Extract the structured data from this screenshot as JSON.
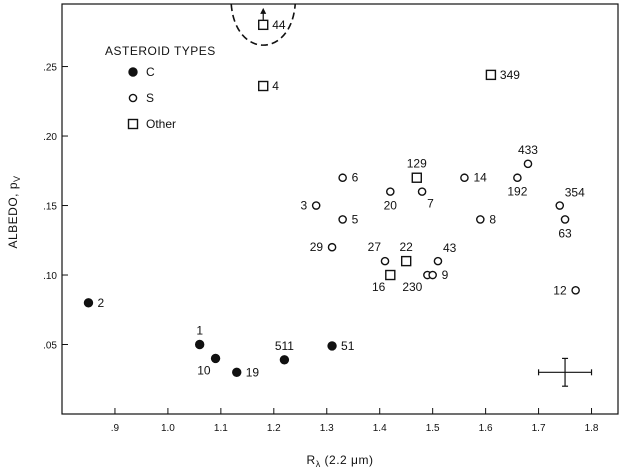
{
  "chart_data": {
    "type": "scatter",
    "title": "",
    "xlabel": "R",
    "xlabel_sub": "λ",
    "xlabel_suffix": " (2.2 μm)",
    "ylabel": "ALBEDO, p",
    "ylabel_sub": "V",
    "xlim": [
      0.8,
      1.85
    ],
    "ylim": [
      0.0,
      0.295
    ],
    "x_ticks": [
      {
        "value": 0.9,
        "label": ".9"
      },
      {
        "value": 1.0,
        "label": "1.0"
      },
      {
        "value": 1.1,
        "label": "1.1"
      },
      {
        "value": 1.2,
        "label": "1.2"
      },
      {
        "value": 1.3,
        "label": "1.3"
      },
      {
        "value": 1.4,
        "label": "1.4"
      },
      {
        "value": 1.5,
        "label": "1.5"
      },
      {
        "value": 1.6,
        "label": "1.6"
      },
      {
        "value": 1.7,
        "label": "1.7"
      },
      {
        "value": 1.8,
        "label": "1.8"
      }
    ],
    "y_ticks": [
      {
        "value": 0.05,
        "label": ".05"
      },
      {
        "value": 0.1,
        "label": ".10"
      },
      {
        "value": 0.15,
        "label": ".15"
      },
      {
        "value": 0.2,
        "label": ".20"
      },
      {
        "value": 0.25,
        "label": ".25"
      }
    ],
    "legend": {
      "title": "ASTEROID TYPES",
      "placement": "top-left",
      "entries": [
        {
          "marker": "filled-circle",
          "label": "C"
        },
        {
          "marker": "open-circle",
          "label": "S"
        },
        {
          "marker": "open-square",
          "label": "Other"
        }
      ]
    },
    "series": [
      {
        "name": "C",
        "marker": "filled-circle",
        "points": [
          {
            "x": 0.85,
            "y": 0.08,
            "label": "2",
            "label_pos": "right"
          },
          {
            "x": 1.06,
            "y": 0.05,
            "label": "1",
            "label_pos": "above"
          },
          {
            "x": 1.09,
            "y": 0.04,
            "label": "10",
            "label_pos": "below-left"
          },
          {
            "x": 1.13,
            "y": 0.03,
            "label": "19",
            "label_pos": "right"
          },
          {
            "x": 1.22,
            "y": 0.039,
            "label": "511",
            "label_pos": "above"
          },
          {
            "x": 1.31,
            "y": 0.049,
            "label": "51",
            "label_pos": "right"
          }
        ]
      },
      {
        "name": "S",
        "marker": "open-circle",
        "points": [
          {
            "x": 1.28,
            "y": 0.15,
            "label": "3",
            "label_pos": "left"
          },
          {
            "x": 1.33,
            "y": 0.17,
            "label": "6",
            "label_pos": "right"
          },
          {
            "x": 1.33,
            "y": 0.14,
            "label": "5",
            "label_pos": "right"
          },
          {
            "x": 1.31,
            "y": 0.12,
            "label": "29",
            "label_pos": "left"
          },
          {
            "x": 1.42,
            "y": 0.16,
            "label": "20",
            "label_pos": "below"
          },
          {
            "x": 1.48,
            "y": 0.16,
            "label": "7",
            "label_pos": "below-right"
          },
          {
            "x": 1.41,
            "y": 0.11,
            "label": "27",
            "label_pos": "above-left"
          },
          {
            "x": 1.56,
            "y": 0.17,
            "label": "14",
            "label_pos": "right"
          },
          {
            "x": 1.59,
            "y": 0.14,
            "label": "8",
            "label_pos": "right"
          },
          {
            "x": 1.51,
            "y": 0.11,
            "label": "43",
            "label_pos": "above-right"
          },
          {
            "x": 1.49,
            "y": 0.1,
            "label": "230",
            "label_pos": "below-left"
          },
          {
            "x": 1.5,
            "y": 0.1,
            "label": "9",
            "label_pos": "right"
          },
          {
            "x": 1.66,
            "y": 0.17,
            "label": "192",
            "label_pos": "below"
          },
          {
            "x": 1.68,
            "y": 0.18,
            "label": "433",
            "label_pos": "above"
          },
          {
            "x": 1.74,
            "y": 0.15,
            "label": "354",
            "label_pos": "above-right"
          },
          {
            "x": 1.75,
            "y": 0.14,
            "label": "63",
            "label_pos": "below"
          },
          {
            "x": 1.77,
            "y": 0.089,
            "label": "12",
            "label_pos": "left"
          }
        ]
      },
      {
        "name": "Other",
        "marker": "open-square",
        "points": [
          {
            "x": 1.18,
            "y": 0.28,
            "label": "44",
            "label_pos": "right"
          },
          {
            "x": 1.18,
            "y": 0.236,
            "label": "4",
            "label_pos": "right"
          },
          {
            "x": 1.61,
            "y": 0.244,
            "label": "349",
            "label_pos": "right"
          },
          {
            "x": 1.47,
            "y": 0.17,
            "label": "129",
            "label_pos": "above"
          },
          {
            "x": 1.45,
            "y": 0.11,
            "label": "22",
            "label_pos": "above"
          },
          {
            "x": 1.42,
            "y": 0.1,
            "label": "16",
            "label_pos": "below-left"
          }
        ]
      }
    ],
    "annotations": {
      "dashed_region_for": "44",
      "upward_arrow_on": "44",
      "error_bar": {
        "x": 1.75,
        "y": 0.03,
        "x_err": 0.05,
        "y_err": 0.01
      }
    },
    "grid": false
  }
}
